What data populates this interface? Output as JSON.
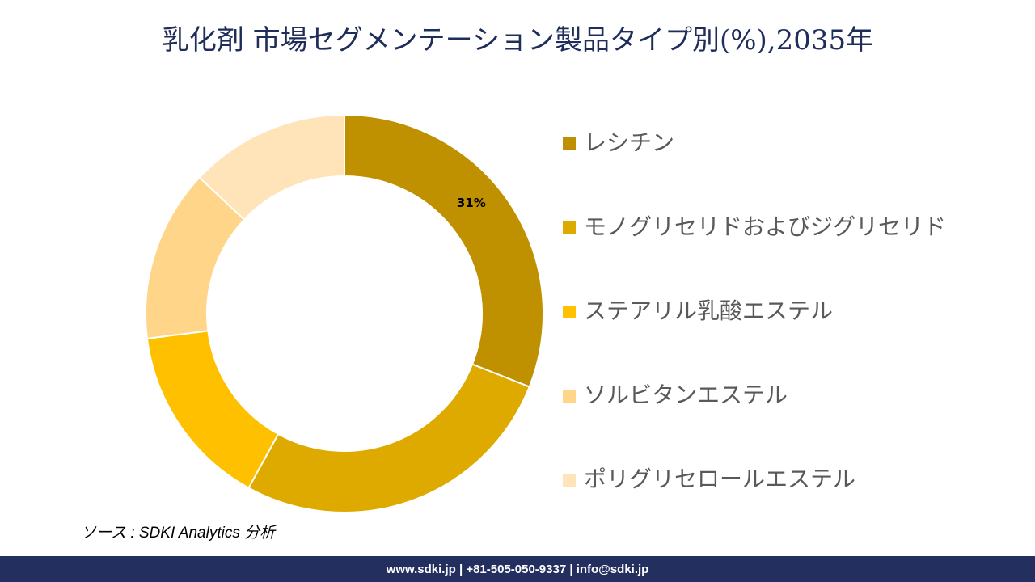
{
  "chart_data": {
    "type": "donut",
    "title": "乳化剤 市場セグメンテーション製品タイプ別(%),2035年",
    "categories": [
      "レシチン",
      "モノグリセリドおよびジグリセリド",
      "ステアリル乳酸エステル",
      "ソルビタンエステル",
      "ポリグリセロールエステル"
    ],
    "values": [
      31,
      27,
      15,
      14,
      13
    ],
    "value_labels": [
      "31%",
      null,
      null,
      null,
      null
    ],
    "colors": [
      "#BF9000",
      "#DEAA00",
      "#FFC000",
      "#FFD58A",
      "#FFE4BA"
    ],
    "legend": "right"
  },
  "source": "ソース : SDKI Analytics 分析",
  "footer": "www.sdki.jp | +81-505-050-9337 | info@sdki.jp"
}
